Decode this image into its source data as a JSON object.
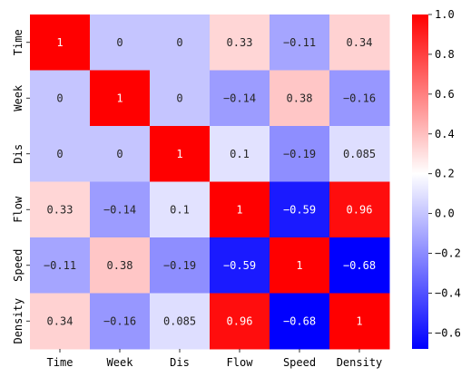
{
  "chart_data": {
    "type": "heatmap",
    "title": "",
    "xlabel": "",
    "ylabel": "",
    "x_categories": [
      "Time",
      "Week",
      "Dis",
      "Flow",
      "Speed",
      "Density"
    ],
    "y_categories": [
      "Time",
      "Week",
      "Dis",
      "Flow",
      "Speed",
      "Density"
    ],
    "values": [
      [
        1,
        0,
        0,
        0.33,
        -0.11,
        0.34
      ],
      [
        0,
        1,
        0,
        -0.14,
        0.38,
        -0.16
      ],
      [
        0,
        0,
        1,
        0.1,
        -0.19,
        0.085
      ],
      [
        0.33,
        -0.14,
        0.1,
        1,
        -0.59,
        0.96
      ],
      [
        -0.11,
        0.38,
        -0.19,
        -0.59,
        1,
        -0.68
      ],
      [
        0.34,
        -0.16,
        0.085,
        0.96,
        -0.68,
        1
      ]
    ],
    "cell_labels": [
      [
        "1",
        "0",
        "0",
        "0.33",
        "−0.11",
        "0.34"
      ],
      [
        "0",
        "1",
        "0",
        "−0.14",
        "0.38",
        "−0.16"
      ],
      [
        "0",
        "0",
        "1",
        "0.1",
        "−0.19",
        "0.085"
      ],
      [
        "0.33",
        "−0.14",
        "0.1",
        "1",
        "−0.59",
        "0.96"
      ],
      [
        "−0.11",
        "0.38",
        "−0.19",
        "−0.59",
        "1",
        "−0.68"
      ],
      [
        "0.34",
        "−0.16",
        "0.085",
        "0.96",
        "−0.68",
        "1"
      ]
    ],
    "colormap": "bwr",
    "vmin": -0.68,
    "vmax": 1.0,
    "center": 0.2,
    "colorbar": {
      "ticks": [
        1.0,
        0.8,
        0.6,
        0.4,
        0.2,
        0.0,
        -0.2,
        -0.4,
        -0.6
      ],
      "tick_labels": [
        "1.0",
        "0.8",
        "0.6",
        "0.4",
        "0.2",
        "0.0",
        "−0.2",
        "−0.4",
        "−0.6"
      ]
    },
    "colors": {
      "low": "#0000ff",
      "mid": "#ffffff",
      "high": "#ff0000"
    }
  }
}
